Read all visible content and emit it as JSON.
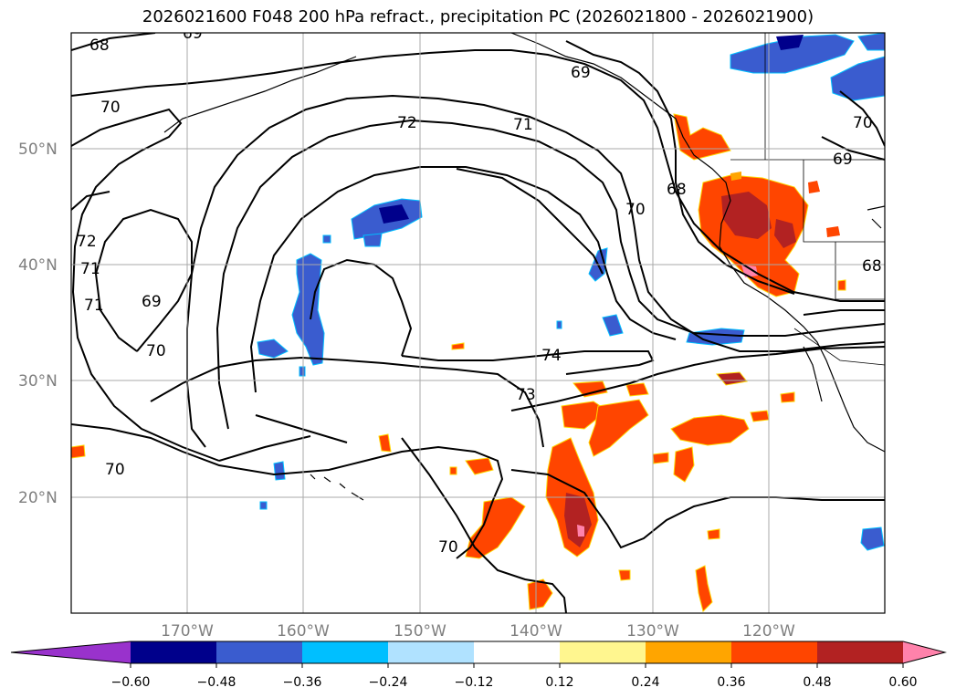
{
  "title": "2026021600 F048 200 hPa refract., precipitation PC (2026021800 - 2026021900)",
  "map": {
    "lat_labels": [
      "50°N",
      "40°N",
      "30°N",
      "20°N"
    ],
    "lon_labels": [
      "170°W",
      "160°W",
      "150°W",
      "140°W",
      "130°W",
      "120°W"
    ]
  },
  "contour_labels": [
    "68",
    "69",
    "70",
    "72",
    "71",
    "71",
    "69",
    "70",
    "68",
    "69",
    "70",
    "72",
    "71",
    "69",
    "70",
    "74",
    "73",
    "70",
    "70",
    "68"
  ],
  "colorbar": {
    "ticks": [
      "−0.60",
      "−0.48",
      "−0.36",
      "−0.24",
      "−0.12",
      "0.12",
      "0.24",
      "0.36",
      "0.48",
      "0.60"
    ],
    "colors": [
      "#9932cc",
      "#00008b",
      "#3a5ccf",
      "#00bfff",
      "#b0e2ff",
      "#ffffff",
      "#fff68f",
      "#ffa500",
      "#ff4500",
      "#b22222",
      "#ff82ab"
    ]
  },
  "colors": {
    "contour": "#000000",
    "coast": "#000000",
    "grid": "#a9a9a9"
  }
}
